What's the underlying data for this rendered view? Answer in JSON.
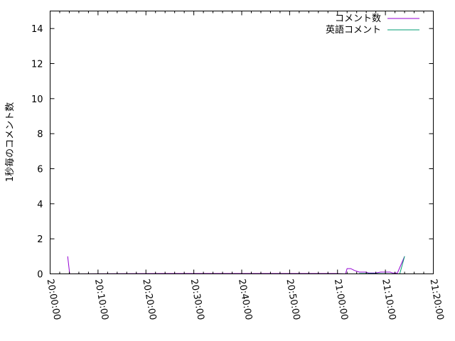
{
  "chart_data": {
    "type": "line",
    "title": "",
    "xlabel": "",
    "ylabel": "1秒毎のコメント数",
    "xlim": [
      "20:00:00",
      "21:20:00"
    ],
    "ylim": [
      0,
      15
    ],
    "x_ticks": [
      "20:00:00",
      "20:10:00",
      "20:20:00",
      "20:30:00",
      "20:40:00",
      "20:50:00",
      "21:00:00",
      "21:10:00",
      "21:20:00"
    ],
    "y_ticks": [
      "0",
      "2",
      "4",
      "6",
      "8",
      "10",
      "12",
      "14"
    ],
    "grid": false,
    "legend_position": "top-right",
    "series": [
      {
        "name": "コメント数",
        "color": "#9400d3",
        "points": [
          [
            "20:03:40",
            1
          ],
          [
            "20:04:05",
            0
          ],
          [
            "20:24:00",
            0.02
          ],
          [
            "20:32:00",
            0.02
          ],
          [
            "20:58:00",
            0.02
          ],
          [
            "20:59:30",
            0.02
          ],
          [
            "21:01:40",
            0
          ],
          [
            "21:02:00",
            0.3
          ],
          [
            "21:02:45",
            0.3
          ],
          [
            "21:03:30",
            0.2
          ],
          [
            "21:04:30",
            0.1
          ],
          [
            "21:06:00",
            0.1
          ],
          [
            "21:06:30",
            0.05
          ],
          [
            "21:08:00",
            0.05
          ],
          [
            "21:09:00",
            0.1
          ],
          [
            "21:11:00",
            0.1
          ],
          [
            "21:11:30",
            0.05
          ],
          [
            "21:12:30",
            0.05
          ],
          [
            "21:14:00",
            1
          ]
        ]
      },
      {
        "name": "英語コメント",
        "color": "#009e73",
        "points": [
          [
            "21:04:30",
            0.02
          ],
          [
            "21:05:10",
            0.02
          ],
          [
            "21:07:00",
            0.02
          ],
          [
            "21:07:30",
            0.02
          ],
          [
            "21:13:00",
            0
          ],
          [
            "21:14:00",
            1
          ]
        ]
      }
    ]
  }
}
